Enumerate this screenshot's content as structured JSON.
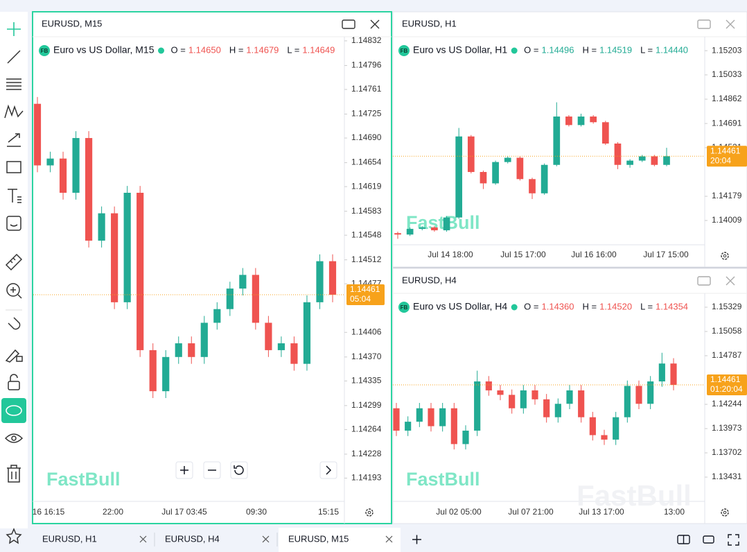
{
  "panels": [
    {
      "title": "EURUSD, M15",
      "badge": "FB",
      "symbol": "Euro vs US Dollar, M15",
      "legend_color": "#ef5350",
      "ohlc_labels": [
        "O =",
        "H =",
        "L ="
      ],
      "ohlc": [
        "1.14650",
        "1.14679",
        "1.14649"
      ],
      "ylim": [
        1.14159,
        1.14838
      ],
      "yticks": [
        1.14832,
        1.14796,
        1.14761,
        1.14725,
        {
          "value": 1.1469,
          "label": "1.14690"
        },
        1.14654,
        1.14619,
        1.14583,
        1.14548,
        1.14512,
        1.14477,
        1.14406,
        {
          "value": 1.1437,
          "label": "1.14370"
        },
        1.14335,
        1.14299,
        1.14264,
        1.14228,
        1.14193
      ],
      "xticks": [
        "16 16:15",
        "22:00",
        "Jul 17 03:45",
        "09:30",
        "15:15"
      ],
      "price": 1.14461,
      "timer": "05:04",
      "watermark": "FastBull",
      "open": [
        1.1474,
        1.1465,
        1.1466,
        1.1461,
        1.1469,
        1.1454,
        1.1458,
        1.1445,
        1.1461,
        1.1438,
        1.1432,
        1.1437,
        1.1439,
        1.1437,
        1.1442,
        1.1444,
        1.1447,
        1.1449,
        1.1442,
        1.1438,
        1.1439,
        1.1436,
        1.1445,
        1.1451
      ],
      "high": [
        1.1475,
        1.1467,
        1.1467,
        1.147,
        1.147,
        1.1459,
        1.1459,
        1.1462,
        1.1462,
        1.1439,
        1.1438,
        1.144,
        1.144,
        1.1443,
        1.1445,
        1.1448,
        1.145,
        1.145,
        1.1443,
        1.144,
        1.144,
        1.1446,
        1.1452,
        1.1452
      ],
      "low": [
        1.1464,
        1.1464,
        1.146,
        1.146,
        1.1453,
        1.1453,
        1.1444,
        1.1444,
        1.1437,
        1.1431,
        1.1431,
        1.1436,
        1.1436,
        1.1436,
        1.1441,
        1.1443,
        1.1446,
        1.1441,
        1.1437,
        1.1437,
        1.1435,
        1.1435,
        1.1444,
        1.1445
      ],
      "close": [
        1.1465,
        1.1466,
        1.1461,
        1.1469,
        1.1454,
        1.1458,
        1.1445,
        1.1461,
        1.1438,
        1.1432,
        1.1437,
        1.1439,
        1.1437,
        1.1442,
        1.1444,
        1.1447,
        1.1449,
        1.1442,
        1.1438,
        1.1439,
        1.1436,
        1.1445,
        1.1451,
        1.14461
      ]
    },
    {
      "title": "EURUSD, H1",
      "badge": "FB",
      "symbol": "Euro vs US Dollar, H1",
      "legend_color": "#22ab94",
      "ohlc_labels": [
        "O =",
        "H =",
        "L ="
      ],
      "ohlc": [
        "1.14496",
        "1.14519",
        "1.14440"
      ],
      "ylim": [
        1.13838,
        1.15301
      ],
      "yticks": [
        1.15203,
        1.15033,
        1.14862,
        1.14691,
        1.14521,
        1.14179,
        1.14009
      ],
      "xticks": [
        "Jul 14 18:00",
        "Jul 15 17:00",
        "Jul 16 16:00",
        "Jul 17 15:00"
      ],
      "price": 1.14461,
      "timer": "20:04",
      "watermark": "FastBull",
      "open": [
        1.1392,
        1.1391,
        1.1395,
        1.1396,
        1.1394,
        1.1403,
        1.146,
        1.1435,
        1.1427,
        1.1442,
        1.1445,
        1.143,
        1.142,
        1.144,
        1.1474,
        1.1468,
        1.1474,
        1.147,
        1.1455,
        1.144,
        1.1443,
        1.1446,
        1.144
      ],
      "high": [
        1.1393,
        1.1396,
        1.1397,
        1.1397,
        1.1404,
        1.1466,
        1.1461,
        1.1436,
        1.1443,
        1.1446,
        1.1446,
        1.1431,
        1.1441,
        1.1484,
        1.1475,
        1.1476,
        1.1475,
        1.1471,
        1.1456,
        1.1444,
        1.1447,
        1.1447,
        1.1452
      ],
      "low": [
        1.1388,
        1.139,
        1.1394,
        1.1393,
        1.1393,
        1.1402,
        1.1434,
        1.1423,
        1.1426,
        1.1441,
        1.1429,
        1.1416,
        1.1419,
        1.1439,
        1.1467,
        1.1467,
        1.1469,
        1.1454,
        1.1437,
        1.1438,
        1.1442,
        1.1439,
        1.1439
      ],
      "close": [
        1.1391,
        1.1395,
        1.1396,
        1.1394,
        1.1403,
        1.146,
        1.1435,
        1.1427,
        1.1442,
        1.1445,
        1.143,
        1.142,
        1.144,
        1.1474,
        1.1468,
        1.1474,
        1.147,
        1.1455,
        1.144,
        1.1443,
        1.1446,
        1.144,
        1.14461
      ]
    },
    {
      "title": "EURUSD, H4",
      "badge": "FB",
      "symbol": "Euro vs US Dollar, H4",
      "legend_color": "#ef5350",
      "ohlc_labels": [
        "O =",
        "H =",
        "L ="
      ],
      "ohlc": [
        "1.14360",
        "1.14520",
        "1.14354"
      ],
      "ylim": [
        1.1316,
        1.15484
      ],
      "yticks": [
        1.15329,
        1.15058,
        1.14787,
        1.14244,
        1.13973,
        1.13702,
        1.13431
      ],
      "xticks": [
        "Jul 02 05:00",
        "Jul 07 21:00",
        "Jul 13 17:00",
        "13:00"
      ],
      "price": 1.14461,
      "timer": "01:20:04",
      "watermark": "FastBull",
      "open": [
        1.142,
        1.1395,
        1.1405,
        1.142,
        1.14,
        1.142,
        1.138,
        1.1395,
        1.145,
        1.144,
        1.1435,
        1.142,
        1.144,
        1.143,
        1.141,
        1.1425,
        1.144,
        1.141,
        1.139,
        1.1385,
        1.141,
        1.1445,
        1.1425,
        1.145,
        1.147
      ],
      "high": [
        1.1426,
        1.1411,
        1.1426,
        1.1426,
        1.1426,
        1.1426,
        1.1401,
        1.1462,
        1.1456,
        1.1446,
        1.1441,
        1.1446,
        1.1446,
        1.1436,
        1.1431,
        1.1446,
        1.1446,
        1.1416,
        1.1396,
        1.1416,
        1.1451,
        1.1451,
        1.1456,
        1.1482,
        1.1476
      ],
      "low": [
        1.1389,
        1.1389,
        1.1399,
        1.1394,
        1.1394,
        1.1374,
        1.1374,
        1.1389,
        1.1434,
        1.1429,
        1.1414,
        1.1414,
        1.1424,
        1.1404,
        1.1404,
        1.1419,
        1.1404,
        1.1384,
        1.1379,
        1.1379,
        1.1404,
        1.1419,
        1.1419,
        1.1444,
        1.144
      ],
      "close": [
        1.1395,
        1.1405,
        1.142,
        1.14,
        1.142,
        1.138,
        1.1395,
        1.145,
        1.144,
        1.1435,
        1.142,
        1.144,
        1.143,
        1.141,
        1.1425,
        1.144,
        1.141,
        1.139,
        1.1385,
        1.141,
        1.1445,
        1.1425,
        1.145,
        1.147,
        1.14461
      ]
    }
  ],
  "tabs": [
    "EURUSD, H1",
    "EURUSD, H4",
    "EURUSD, M15"
  ],
  "overlay_watermark": "FastBull"
}
